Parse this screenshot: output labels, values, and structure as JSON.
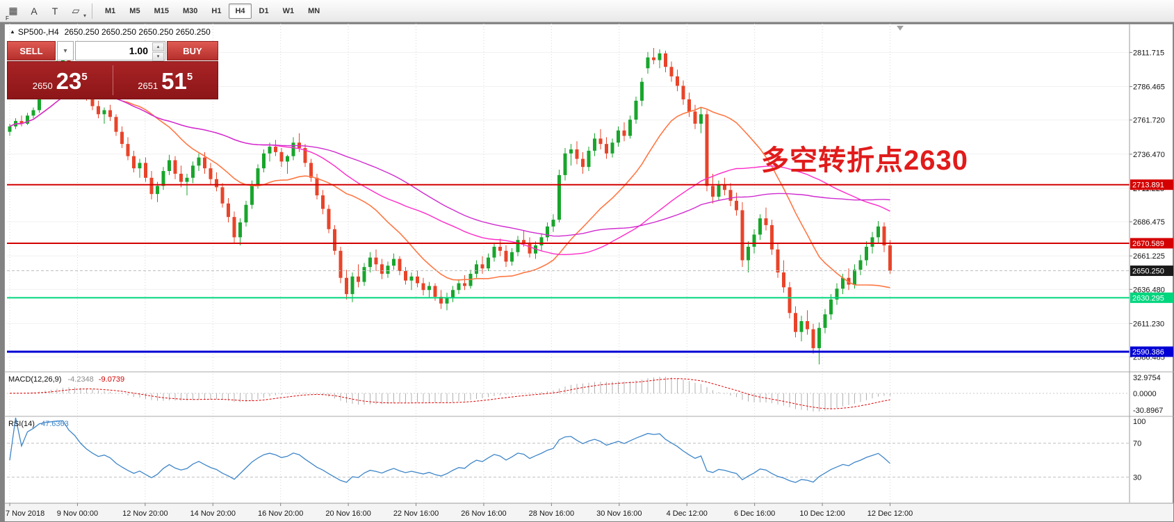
{
  "toolbar": {
    "tool_icons": [
      {
        "name": "chart-grid-icon",
        "glyph": "▦",
        "badge": "F"
      },
      {
        "name": "text-annotation-icon",
        "glyph": "A"
      },
      {
        "name": "text-label-icon",
        "glyph": "T"
      },
      {
        "name": "shapes-dropdown-icon",
        "glyph": "▱",
        "arrow": "▾"
      }
    ],
    "timeframes": [
      {
        "label": "M1",
        "active": false
      },
      {
        "label": "M5",
        "active": false
      },
      {
        "label": "M15",
        "active": false
      },
      {
        "label": "M30",
        "active": false
      },
      {
        "label": "H1",
        "active": false
      },
      {
        "label": "H4",
        "active": true
      },
      {
        "label": "D1",
        "active": false
      },
      {
        "label": "W1",
        "active": false
      },
      {
        "label": "MN",
        "active": false
      }
    ]
  },
  "chart": {
    "title_symbol": "SP500-,H4",
    "title_ohlc": "2650.250 2650.250 2650.250 2650.250"
  },
  "trade_panel": {
    "sell_label": "SELL",
    "buy_label": "BUY",
    "volume": "1.00",
    "bid": {
      "small": "2650",
      "big": "23",
      "sup": "5"
    },
    "ask": {
      "small": "2651",
      "big": "51",
      "sup": "5"
    }
  },
  "icons": {
    "chevron_down": "▾",
    "spinner_up": "▴",
    "spinner_down": "▾",
    "title_marker": "▲"
  },
  "annotation": {
    "text": "多空转折点2630",
    "color": "#e11b1b"
  },
  "indicators": {
    "macd": {
      "name": "MACD(12,26,9)",
      "main_value": "-4.2348",
      "signal_value": "-9.0739",
      "axis": [
        "32.9754",
        "0.0000",
        "-30.8967"
      ],
      "histogram_color": "#b0b0b0",
      "signal_color": "#e00000"
    },
    "rsi": {
      "name": "RSI(14)",
      "value": "47.6363",
      "axis": [
        "100",
        "70",
        "30"
      ],
      "levels": [
        70,
        30
      ],
      "line_color": "#3d85c8"
    }
  },
  "chart_data": {
    "type": "candlestick",
    "symbol": "SP500-",
    "timeframe": "H4",
    "title": "SP500-,H4 2650.250 2650.250 2650.250 2650.250",
    "price_range": [
      2576.5,
      2833.0
    ],
    "y_axis_labels": [
      2811.715,
      2786.465,
      2761.72,
      2736.47,
      2711.225,
      2686.475,
      2661.225,
      2636.48,
      2611.23,
      2586.485
    ],
    "x_labels": [
      "7 Nov 2018",
      "9 Nov 00:00",
      "12 Nov 20:00",
      "14 Nov 20:00",
      "16 Nov 20:00",
      "20 Nov 16:00",
      "22 Nov 16:00",
      "26 Nov 16:00",
      "28 Nov 16:00",
      "30 Nov 16:00",
      "4 Dec 12:00",
      "6 Dec 16:00",
      "10 Dec 12:00",
      "12 Dec 12:00"
    ],
    "up_color": "#18a52c",
    "down_color": "#e8442a",
    "grid_color": "#d6d6d6",
    "hlines": [
      {
        "price": 2713.891,
        "color": "#d40000",
        "width": 2,
        "label": "2713.891"
      },
      {
        "price": 2670.589,
        "color": "#d40000",
        "width": 2,
        "label": "2670.589"
      },
      {
        "price": 2650.25,
        "color": "#bdbdbd",
        "width": 1,
        "dash": "4,3",
        "label": "2650.250",
        "label_bg": "#1a1a1a"
      },
      {
        "price": 2630.295,
        "color": "#00d67e",
        "width": 2,
        "label": "2630.295"
      },
      {
        "price": 2590.386,
        "color": "#0000d4",
        "width": 3,
        "label": "2590.386"
      }
    ],
    "ma": [
      {
        "period": 20,
        "color": "#ff7743",
        "width": 1.6
      },
      {
        "period": 45,
        "color": "#ff29c8",
        "width": 1.4
      },
      {
        "period": 60,
        "color": "#cf2bcf",
        "width": 1.4
      }
    ],
    "candles": [
      [
        2753,
        2759,
        2750,
        2757
      ],
      [
        2757,
        2763,
        2755,
        2761
      ],
      [
        2761,
        2765,
        2757,
        2759
      ],
      [
        2759,
        2767,
        2758,
        2765
      ],
      [
        2765,
        2771,
        2763,
        2769
      ],
      [
        2769,
        2783,
        2767,
        2781
      ],
      [
        2781,
        2790,
        2779,
        2788
      ],
      [
        2788,
        2797,
        2786,
        2795
      ],
      [
        2795,
        2806,
        2793,
        2804
      ],
      [
        2804,
        2813,
        2802,
        2808
      ],
      [
        2808,
        2811,
        2798,
        2801
      ],
      [
        2801,
        2804,
        2793,
        2796
      ],
      [
        2796,
        2798,
        2784,
        2787
      ],
      [
        2787,
        2790,
        2776,
        2779
      ],
      [
        2779,
        2783,
        2769,
        2772
      ],
      [
        2772,
        2776,
        2763,
        2766
      ],
      [
        2766,
        2771,
        2759,
        2769
      ],
      [
        2769,
        2773,
        2761,
        2764
      ],
      [
        2764,
        2766,
        2750,
        2753
      ],
      [
        2753,
        2757,
        2741,
        2744
      ],
      [
        2744,
        2749,
        2732,
        2735
      ],
      [
        2735,
        2739,
        2723,
        2726
      ],
      [
        2726,
        2733,
        2719,
        2730
      ],
      [
        2730,
        2734,
        2716,
        2719
      ],
      [
        2719,
        2724,
        2703,
        2707
      ],
      [
        2707,
        2716,
        2701,
        2713
      ],
      [
        2713,
        2727,
        2710,
        2724
      ],
      [
        2724,
        2736,
        2721,
        2732
      ],
      [
        2732,
        2735,
        2718,
        2722
      ],
      [
        2722,
        2728,
        2712,
        2716
      ],
      [
        2716,
        2722,
        2706,
        2719
      ],
      [
        2719,
        2731,
        2715,
        2728
      ],
      [
        2728,
        2737,
        2724,
        2734
      ],
      [
        2734,
        2738,
        2722,
        2726
      ],
      [
        2726,
        2730,
        2714,
        2718
      ],
      [
        2718,
        2723,
        2709,
        2712
      ],
      [
        2712,
        2715,
        2697,
        2700
      ],
      [
        2700,
        2704,
        2686,
        2690
      ],
      [
        2690,
        2694,
        2671,
        2675
      ],
      [
        2675,
        2689,
        2669,
        2686
      ],
      [
        2686,
        2702,
        2683,
        2699
      ],
      [
        2699,
        2717,
        2696,
        2714
      ],
      [
        2714,
        2729,
        2711,
        2726
      ],
      [
        2726,
        2740,
        2723,
        2737
      ],
      [
        2737,
        2745,
        2731,
        2742
      ],
      [
        2742,
        2747,
        2735,
        2738
      ],
      [
        2738,
        2741,
        2727,
        2731
      ],
      [
        2731,
        2736,
        2722,
        2735
      ],
      [
        2735,
        2749,
        2732,
        2745
      ],
      [
        2745,
        2752,
        2738,
        2741
      ],
      [
        2741,
        2744,
        2727,
        2730
      ],
      [
        2730,
        2733,
        2716,
        2719
      ],
      [
        2719,
        2722,
        2703,
        2706
      ],
      [
        2706,
        2710,
        2692,
        2696
      ],
      [
        2696,
        2699,
        2678,
        2681
      ],
      [
        2681,
        2684,
        2662,
        2665
      ],
      [
        2665,
        2668,
        2641,
        2645
      ],
      [
        2645,
        2651,
        2629,
        2633
      ],
      [
        2633,
        2649,
        2627,
        2646
      ],
      [
        2646,
        2655,
        2638,
        2642
      ],
      [
        2642,
        2656,
        2639,
        2653
      ],
      [
        2653,
        2664,
        2649,
        2660
      ],
      [
        2660,
        2666,
        2650,
        2655
      ],
      [
        2655,
        2659,
        2644,
        2648
      ],
      [
        2648,
        2657,
        2645,
        2654
      ],
      [
        2654,
        2663,
        2651,
        2659
      ],
      [
        2659,
        2661,
        2647,
        2650
      ],
      [
        2650,
        2653,
        2640,
        2643
      ],
      [
        2643,
        2649,
        2636,
        2646
      ],
      [
        2646,
        2650,
        2638,
        2641
      ],
      [
        2641,
        2645,
        2632,
        2636
      ],
      [
        2636,
        2642,
        2630,
        2639
      ],
      [
        2639,
        2641,
        2628,
        2631
      ],
      [
        2631,
        2636,
        2622,
        2626
      ],
      [
        2626,
        2634,
        2621,
        2630
      ],
      [
        2630,
        2639,
        2627,
        2636
      ],
      [
        2636,
        2644,
        2633,
        2641
      ],
      [
        2641,
        2647,
        2636,
        2639
      ],
      [
        2639,
        2651,
        2637,
        2648
      ],
      [
        2648,
        2658,
        2645,
        2655
      ],
      [
        2655,
        2661,
        2648,
        2652
      ],
      [
        2652,
        2663,
        2650,
        2660
      ],
      [
        2660,
        2671,
        2657,
        2668
      ],
      [
        2668,
        2674,
        2661,
        2665
      ],
      [
        2665,
        2669,
        2653,
        2657
      ],
      [
        2657,
        2667,
        2654,
        2664
      ],
      [
        2664,
        2676,
        2661,
        2673
      ],
      [
        2673,
        2680,
        2668,
        2671
      ],
      [
        2671,
        2675,
        2660,
        2663
      ],
      [
        2663,
        2672,
        2659,
        2669
      ],
      [
        2669,
        2678,
        2665,
        2675
      ],
      [
        2675,
        2686,
        2672,
        2683
      ],
      [
        2683,
        2692,
        2679,
        2688
      ],
      [
        2688,
        2725,
        2686,
        2721
      ],
      [
        2721,
        2741,
        2717,
        2737
      ],
      [
        2737,
        2744,
        2728,
        2740
      ],
      [
        2740,
        2746,
        2729,
        2733
      ],
      [
        2733,
        2738,
        2722,
        2727
      ],
      [
        2727,
        2742,
        2724,
        2739
      ],
      [
        2739,
        2752,
        2735,
        2748
      ],
      [
        2748,
        2755,
        2740,
        2744
      ],
      [
        2744,
        2749,
        2733,
        2737
      ],
      [
        2737,
        2748,
        2734,
        2745
      ],
      [
        2745,
        2757,
        2742,
        2754
      ],
      [
        2754,
        2760,
        2746,
        2750
      ],
      [
        2750,
        2765,
        2748,
        2762
      ],
      [
        2762,
        2779,
        2759,
        2776
      ],
      [
        2776,
        2793,
        2772,
        2790
      ],
      [
        2800,
        2812,
        2796,
        2808
      ],
      [
        2808,
        2815,
        2803,
        2806
      ],
      [
        2806,
        2814,
        2800,
        2811
      ],
      [
        2811,
        2813,
        2797,
        2801
      ],
      [
        2801,
        2805,
        2790,
        2794
      ],
      [
        2794,
        2799,
        2783,
        2787
      ],
      [
        2787,
        2791,
        2773,
        2777
      ],
      [
        2777,
        2782,
        2764,
        2768
      ],
      [
        2768,
        2773,
        2755,
        2759
      ],
      [
        2759,
        2771,
        2752,
        2766
      ],
      [
        2766,
        2769,
        2709,
        2713
      ],
      [
        2713,
        2722,
        2700,
        2705
      ],
      [
        2705,
        2717,
        2702,
        2714
      ],
      [
        2714,
        2719,
        2706,
        2710
      ],
      [
        2710,
        2715,
        2698,
        2702
      ],
      [
        2702,
        2708,
        2691,
        2695
      ],
      [
        2695,
        2701,
        2653,
        2658
      ],
      [
        2658,
        2672,
        2649,
        2668
      ],
      [
        2668,
        2681,
        2663,
        2677
      ],
      [
        2677,
        2692,
        2673,
        2689
      ],
      [
        2689,
        2697,
        2680,
        2684
      ],
      [
        2684,
        2688,
        2662,
        2666
      ],
      [
        2666,
        2671,
        2645,
        2649
      ],
      [
        2649,
        2658,
        2634,
        2638
      ],
      [
        2638,
        2642,
        2615,
        2619
      ],
      [
        2619,
        2624,
        2601,
        2605
      ],
      [
        2605,
        2617,
        2598,
        2613
      ],
      [
        2613,
        2621,
        2603,
        2607
      ],
      [
        2607,
        2611,
        2589,
        2593
      ],
      [
        2593,
        2612,
        2581,
        2608
      ],
      [
        2608,
        2622,
        2604,
        2618
      ],
      [
        2618,
        2633,
        2614,
        2629
      ],
      [
        2629,
        2641,
        2625,
        2637
      ],
      [
        2637,
        2648,
        2633,
        2645
      ],
      [
        2645,
        2652,
        2636,
        2640
      ],
      [
        2640,
        2655,
        2637,
        2651
      ],
      [
        2651,
        2662,
        2647,
        2658
      ],
      [
        2658,
        2672,
        2654,
        2668
      ],
      [
        2668,
        2679,
        2663,
        2675
      ],
      [
        2675,
        2687,
        2671,
        2683
      ],
      [
        2683,
        2686,
        2664,
        2669
      ],
      [
        2669,
        2673,
        2648,
        2650.25
      ]
    ]
  }
}
